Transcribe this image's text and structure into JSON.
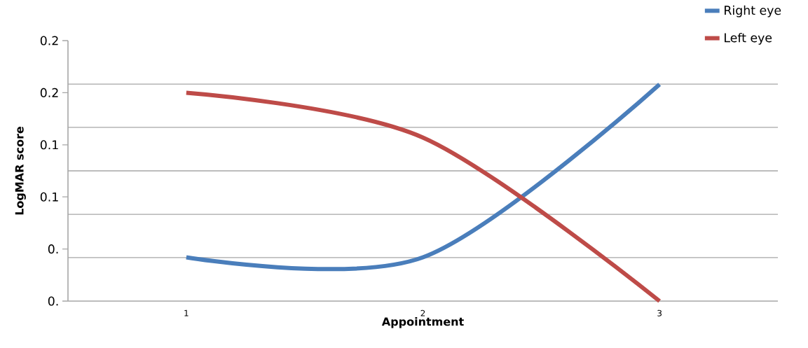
{
  "chart_data": {
    "type": "line",
    "xlabel": "Appointment",
    "ylabel": "LogMAR score",
    "categories": [
      "1",
      "2",
      "3"
    ],
    "series": [
      {
        "name": "Right eye",
        "color": "#4a7ebb",
        "values": [
          0.042,
          0.042,
          0.208
        ]
      },
      {
        "name": "Left eye",
        "color": "#be4b48",
        "values": [
          0.2,
          0.157,
          0
        ]
      }
    ],
    "ylim": [
      0,
      0.25
    ],
    "yticks": [
      {
        "value": 0,
        "label": "0."
      },
      {
        "value": 0.05,
        "label": "0."
      },
      {
        "value": 0.1,
        "label": "0.1"
      },
      {
        "value": 0.15,
        "label": "0.1"
      },
      {
        "value": 0.2,
        "label": "0.2"
      },
      {
        "value": 0.25,
        "label": "0.2"
      },
      {
        "value": 0.0417,
        "label": null
      },
      {
        "value": 0.0833,
        "label": null
      },
      {
        "value": 0.125,
        "label": null
      },
      {
        "value": 0.1667,
        "label": null
      },
      {
        "value": 0.2083,
        "label": null
      }
    ],
    "grid": "y",
    "legend": "top right",
    "marker": "none",
    "line_style": "solid"
  }
}
